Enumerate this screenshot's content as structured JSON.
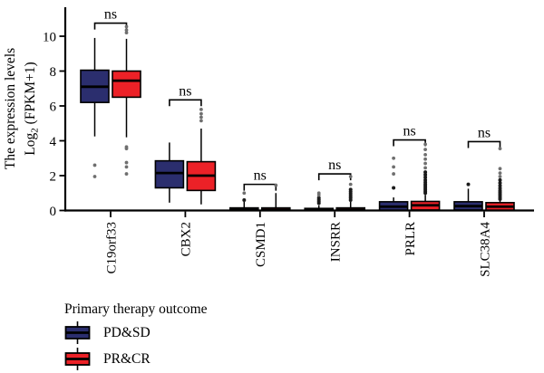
{
  "chart_data": {
    "type": "grouped_boxplot",
    "title": "",
    "ylabel": {
      "line1": "The expression levels",
      "line2_prefix": "Log",
      "line2_sub": "2",
      "line2_suffix": " (FPKM+1)"
    },
    "yticks": [
      0,
      2,
      4,
      6,
      8,
      10
    ],
    "ylim": [
      0,
      11.6
    ],
    "grid": false,
    "legend": {
      "title": "Primary therapy outcome",
      "position": "bottom-left",
      "items": [
        {
          "label": "PD&SD",
          "color": "#2b2e6e"
        },
        {
          "label": "PR&CR",
          "color": "#ec2127"
        }
      ]
    },
    "colors": {
      "axis": "#000000",
      "outlier_gray": "#6f6f6f",
      "outlier_dark": "#1a1a1a"
    },
    "genes": [
      {
        "name": "C19orf33",
        "sig": "ns",
        "bracket_y": 10.75,
        "groups": [
          {
            "key": "PD&SD",
            "low": 4.25,
            "q1": 6.2,
            "median": 7.1,
            "q3": 8.05,
            "high": 9.9,
            "outliers_gray": [
              2.6,
              1.95
            ],
            "outliers_dark": []
          },
          {
            "key": "PR&CR",
            "low": 4.2,
            "q1": 6.5,
            "median": 7.45,
            "q3": 8.0,
            "high": 9.85,
            "outliers_gray": [
              10.55,
              10.35,
              10.2,
              3.65,
              3.55,
              2.75,
              2.5,
              2.1
            ],
            "outliers_dark": []
          }
        ]
      },
      {
        "name": "CBX2",
        "sig": "ns",
        "bracket_y": 6.35,
        "groups": [
          {
            "key": "PD&SD",
            "low": 0.45,
            "q1": 1.3,
            "median": 2.15,
            "q3": 2.85,
            "high": 3.9,
            "outliers_gray": [],
            "outliers_dark": []
          },
          {
            "key": "PR&CR",
            "low": 0.35,
            "q1": 1.15,
            "median": 2.0,
            "q3": 2.8,
            "high": 4.7,
            "outliers_gray": [
              5.8,
              5.55,
              5.35,
              5.15
            ],
            "outliers_dark": []
          }
        ]
      },
      {
        "name": "CSMD1",
        "sig": "ns",
        "bracket_y": 1.5,
        "groups": [
          {
            "key": "PD&SD",
            "low": 0,
            "q1": 0,
            "median": 0.03,
            "q3": 0.15,
            "high": 0.5,
            "outliers_gray": [
              1.0
            ],
            "outliers_dark": [
              0.6
            ]
          },
          {
            "key": "PR&CR",
            "low": 0,
            "q1": 0,
            "median": 0.03,
            "q3": 0.15,
            "high": 1.0,
            "outliers_gray": [
              1.45
            ],
            "outliers_dark": []
          }
        ]
      },
      {
        "name": "INSRR",
        "sig": "ns",
        "bracket_y": 2.1,
        "groups": [
          {
            "key": "PD&SD",
            "low": 0,
            "q1": 0,
            "median": 0.03,
            "q3": 0.12,
            "high": 0.3,
            "outliers_gray": [
              0.88,
              1.0
            ],
            "outliers_dark": [
              0.42,
              0.52,
              0.62,
              0.72
            ]
          },
          {
            "key": "PR&CR",
            "low": 0,
            "q1": 0,
            "median": 0.03,
            "q3": 0.15,
            "high": 0.5,
            "outliers_gray": [
              1.5,
              1.95
            ],
            "outliers_dark": [
              0.6,
              0.72,
              0.84,
              0.96,
              1.08,
              1.2
            ]
          }
        ]
      },
      {
        "name": "PRLR",
        "sig": "ns",
        "bracket_y": 4.05,
        "groups": [
          {
            "key": "PD&SD",
            "low": 0,
            "q1": 0.02,
            "median": 0.22,
            "q3": 0.5,
            "high": 0.75,
            "outliers_gray": [
              2.1,
              2.5,
              3.0
            ],
            "outliers_dark": [
              1.3
            ]
          },
          {
            "key": "PR&CR",
            "low": 0,
            "q1": 0.03,
            "median": 0.3,
            "q3": 0.52,
            "high": 0.9,
            "outliers_gray": [
              2.45,
              2.7,
              2.95,
              3.2,
              3.5,
              3.8
            ],
            "outliers_dark": [
              1.0,
              1.1,
              1.2,
              1.3,
              1.4,
              1.5,
              1.62,
              1.75,
              1.9,
              2.05,
              2.2
            ]
          }
        ]
      },
      {
        "name": "SLC38A4",
        "sig": "ns",
        "bracket_y": 3.95,
        "groups": [
          {
            "key": "PD&SD",
            "low": 0,
            "q1": 0.03,
            "median": 0.25,
            "q3": 0.5,
            "high": 1.25,
            "outliers_gray": [],
            "outliers_dark": [
              1.5
            ]
          },
          {
            "key": "PR&CR",
            "low": 0,
            "q1": 0.02,
            "median": 0.22,
            "q3": 0.45,
            "high": 0.55,
            "outliers_gray": [
              1.95,
              2.15,
              2.4,
              3.55
            ],
            "outliers_dark": [
              0.65,
              0.75,
              0.85,
              0.95,
              1.05,
              1.15,
              1.28,
              1.42,
              1.58,
              1.75
            ]
          }
        ]
      }
    ]
  }
}
